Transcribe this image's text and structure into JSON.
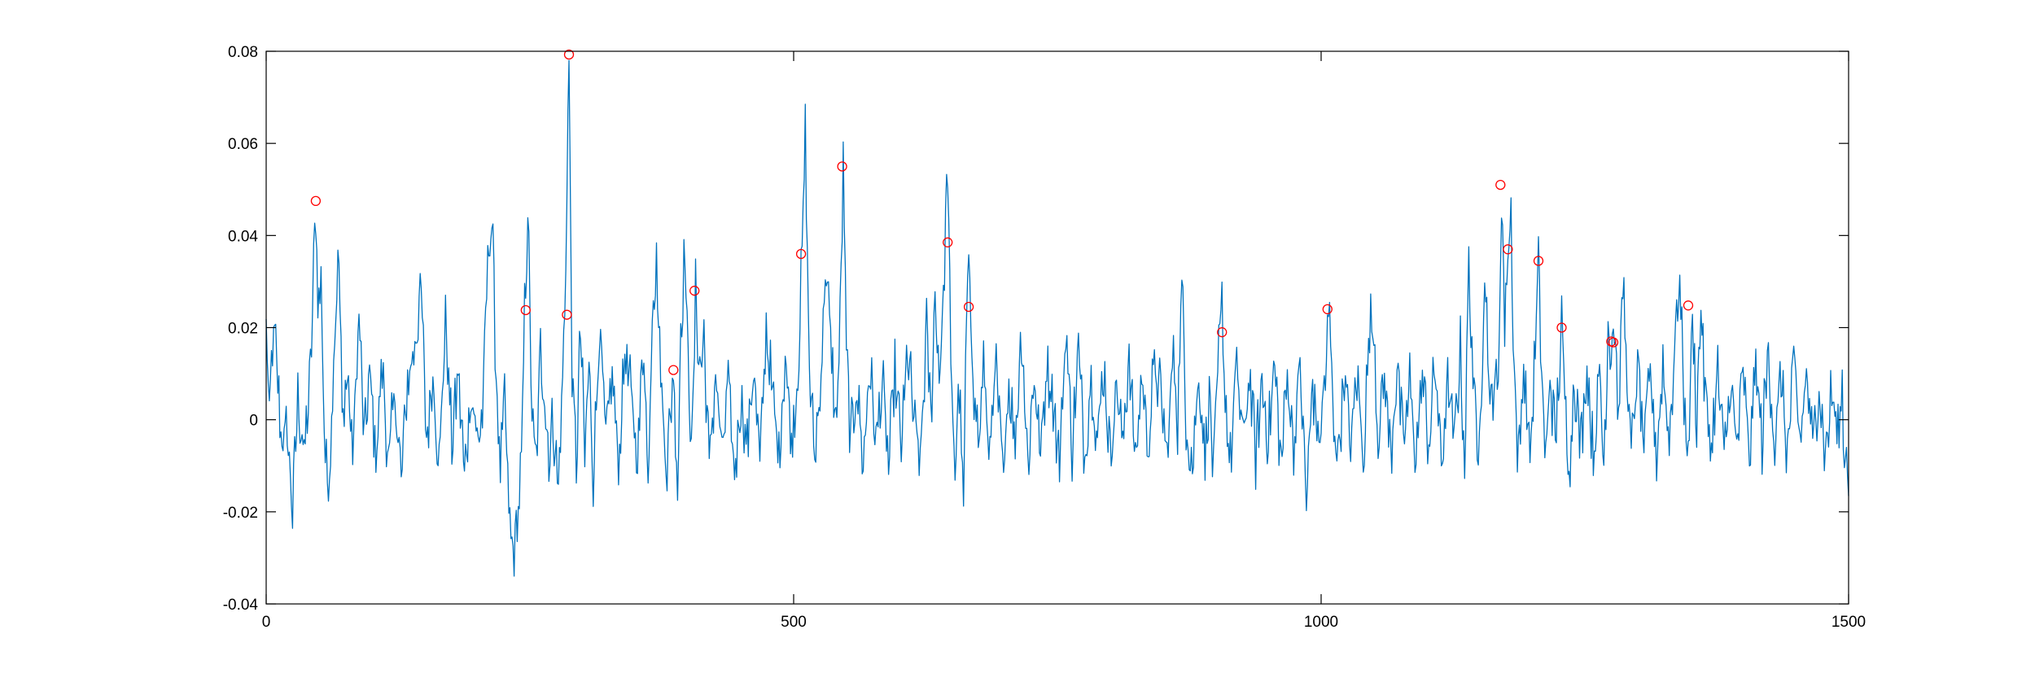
{
  "chart_data": {
    "type": "line",
    "title": "",
    "xlabel": "",
    "ylabel": "",
    "xlim": [
      0,
      1500
    ],
    "ylim": [
      -0.04,
      0.08
    ],
    "x_ticks": [
      0,
      500,
      1000,
      1500
    ],
    "x_tick_labels": [
      "0",
      "500",
      "1000",
      "1500"
    ],
    "y_ticks": [
      -0.04,
      -0.02,
      0,
      0.02,
      0.04,
      0.06,
      0.08
    ],
    "y_tick_labels": [
      "-0.04",
      "-0.02",
      "0",
      "0.02",
      "0.04",
      "0.06",
      "0.08"
    ],
    "grid": false,
    "box": true,
    "colors": {
      "line": "#0072BD",
      "markers": "#FF0000",
      "axes": "#000000"
    },
    "signal": {
      "x_start": 0,
      "x_end": 1500,
      "anchors": [
        [
          0,
          0.02
        ],
        [
          3,
          0.0
        ],
        [
          6,
          0.017
        ],
        [
          9,
          0.016
        ],
        [
          13,
          0.0
        ],
        [
          16,
          -0.005
        ],
        [
          20,
          -0.002
        ],
        [
          25,
          -0.02
        ],
        [
          30,
          0.005
        ],
        [
          36,
          -0.008
        ],
        [
          42,
          0.01
        ],
        [
          47,
          0.047
        ],
        [
          49,
          0.025
        ],
        [
          52,
          0.03
        ],
        [
          56,
          -0.01
        ],
        [
          60,
          -0.012
        ],
        [
          65,
          0.02
        ],
        [
          69,
          0.036
        ],
        [
          72,
          0.0
        ],
        [
          77,
          0.01
        ],
        [
          82,
          -0.008
        ],
        [
          88,
          0.023
        ],
        [
          93,
          -0.005
        ],
        [
          98,
          0.01
        ],
        [
          104,
          -0.008
        ],
        [
          110,
          0.012
        ],
        [
          116,
          -0.01
        ],
        [
          122,
          0.006
        ],
        [
          128,
          -0.013
        ],
        [
          134,
          0.008
        ],
        [
          140,
          0.015
        ],
        [
          147,
          0.028
        ],
        [
          152,
          -0.005
        ],
        [
          158,
          0.01
        ],
        [
          164,
          -0.01
        ],
        [
          170,
          0.022
        ],
        [
          176,
          -0.005
        ],
        [
          182,
          0.01
        ],
        [
          188,
          -0.012
        ],
        [
          194,
          0.006
        ],
        [
          200,
          -0.004
        ],
        [
          205,
          0.0
        ],
        [
          210,
          0.035
        ],
        [
          214,
          0.044
        ],
        [
          218,
          0.01
        ],
        [
          222,
          -0.012
        ],
        [
          226,
          0.005
        ],
        [
          230,
          -0.02
        ],
        [
          234,
          -0.03
        ],
        [
          238,
          -0.022
        ],
        [
          242,
          -0.01
        ],
        [
          245,
          0.023
        ],
        [
          248,
          0.046
        ],
        [
          252,
          0.0
        ],
        [
          256,
          -0.01
        ],
        [
          260,
          0.015
        ],
        [
          264,
          0.005
        ],
        [
          268,
          -0.008
        ],
        [
          272,
          0.0
        ],
        [
          277,
          -0.015
        ],
        [
          283,
          0.022
        ],
        [
          287,
          0.079
        ],
        [
          290,
          0.01
        ],
        [
          294,
          -0.01
        ],
        [
          298,
          0.02
        ],
        [
          302,
          -0.008
        ],
        [
          306,
          0.012
        ],
        [
          310,
          -0.012
        ],
        [
          316,
          0.02
        ],
        [
          322,
          -0.005
        ],
        [
          328,
          0.01
        ],
        [
          334,
          -0.01
        ],
        [
          340,
          0.015
        ],
        [
          346,
          0.005
        ],
        [
          352,
          -0.008
        ],
        [
          358,
          0.018
        ],
        [
          362,
          -0.015
        ],
        [
          366,
          0.026
        ],
        [
          370,
          0.033
        ],
        [
          375,
          0.005
        ],
        [
          380,
          -0.01
        ],
        [
          386,
          0.011
        ],
        [
          390,
          -0.015
        ],
        [
          393,
          0.02
        ],
        [
          397,
          0.037
        ],
        [
          400,
          0.01
        ],
        [
          404,
          -0.005
        ],
        [
          407,
          0.028
        ],
        [
          411,
          0.01
        ],
        [
          415,
          0.018
        ],
        [
          420,
          -0.01
        ],
        [
          426,
          0.01
        ],
        [
          432,
          -0.008
        ],
        [
          438,
          0.008
        ],
        [
          444,
          -0.012
        ],
        [
          450,
          0.005
        ],
        [
          456,
          -0.006
        ],
        [
          462,
          0.012
        ],
        [
          468,
          -0.01
        ],
        [
          474,
          0.02
        ],
        [
          480,
          0.005
        ],
        [
          486,
          -0.008
        ],
        [
          492,
          0.014
        ],
        [
          498,
          -0.005
        ],
        [
          504,
          0.01
        ],
        [
          508,
          0.036
        ],
        [
          511,
          0.062
        ],
        [
          515,
          0.01
        ],
        [
          520,
          -0.008
        ],
        [
          526,
          0.01
        ],
        [
          530,
          0.033
        ],
        [
          535,
          0.018
        ],
        [
          540,
          -0.002
        ],
        [
          544,
          0.02
        ],
        [
          547,
          0.056
        ],
        [
          550,
          0.015
        ],
        [
          554,
          -0.005
        ],
        [
          560,
          0.008
        ],
        [
          566,
          -0.01
        ],
        [
          572,
          0.012
        ],
        [
          578,
          -0.005
        ],
        [
          584,
          0.008
        ],
        [
          590,
          -0.01
        ],
        [
          596,
          0.01
        ],
        [
          602,
          -0.006
        ],
        [
          608,
          0.015
        ],
        [
          614,
          0.0
        ],
        [
          620,
          -0.01
        ],
        [
          626,
          0.02
        ],
        [
          630,
          0.0
        ],
        [
          634,
          0.027
        ],
        [
          638,
          0.01
        ],
        [
          642,
          0.026
        ],
        [
          646,
          0.057
        ],
        [
          649,
          0.01
        ],
        [
          653,
          -0.01
        ],
        [
          657,
          0.008
        ],
        [
          661,
          -0.02
        ],
        [
          664,
          0.024
        ],
        [
          667,
          0.032
        ],
        [
          671,
          0.005
        ],
        [
          676,
          -0.005
        ],
        [
          680,
          0.012
        ],
        [
          686,
          -0.008
        ],
        [
          692,
          0.01
        ],
        [
          698,
          -0.01
        ],
        [
          704,
          0.008
        ],
        [
          710,
          -0.005
        ],
        [
          716,
          0.02
        ],
        [
          722,
          -0.01
        ],
        [
          728,
          0.01
        ],
        [
          734,
          -0.008
        ],
        [
          740,
          0.012
        ],
        [
          746,
          0.005
        ],
        [
          752,
          -0.01
        ],
        [
          758,
          0.02
        ],
        [
          764,
          -0.006
        ],
        [
          770,
          0.015
        ],
        [
          776,
          -0.008
        ],
        [
          782,
          0.01
        ],
        [
          788,
          -0.005
        ],
        [
          794,
          0.012
        ],
        [
          800,
          -0.008
        ],
        [
          806,
          0.008
        ],
        [
          812,
          -0.006
        ],
        [
          818,
          0.015
        ],
        [
          824,
          -0.01
        ],
        [
          830,
          0.01
        ],
        [
          836,
          -0.006
        ],
        [
          842,
          0.012
        ],
        [
          848,
          0.005
        ],
        [
          854,
          -0.008
        ],
        [
          860,
          0.015
        ],
        [
          864,
          0.0
        ],
        [
          868,
          0.03
        ],
        [
          872,
          0.0
        ],
        [
          878,
          -0.01
        ],
        [
          884,
          0.01
        ],
        [
          890,
          -0.008
        ],
        [
          894,
          0.006
        ],
        [
          898,
          -0.012
        ],
        [
          904,
          0.019
        ],
        [
          906,
          0.025
        ],
        [
          909,
          0.005
        ],
        [
          914,
          -0.01
        ],
        [
          920,
          0.012
        ],
        [
          926,
          -0.005
        ],
        [
          932,
          0.01
        ],
        [
          938,
          -0.008
        ],
        [
          944,
          0.008
        ],
        [
          950,
          -0.004
        ],
        [
          956,
          0.012
        ],
        [
          962,
          -0.01
        ],
        [
          968,
          0.01
        ],
        [
          974,
          -0.006
        ],
        [
          980,
          0.012
        ],
        [
          986,
          -0.018
        ],
        [
          992,
          0.008
        ],
        [
          998,
          -0.006
        ],
        [
          1004,
          0.01
        ],
        [
          1008,
          0.024
        ],
        [
          1011,
          0.002
        ],
        [
          1016,
          -0.008
        ],
        [
          1022,
          0.01
        ],
        [
          1028,
          -0.006
        ],
        [
          1034,
          0.01
        ],
        [
          1040,
          -0.008
        ],
        [
          1046,
          0.02
        ],
        [
          1050,
          0.021
        ],
        [
          1054,
          -0.005
        ],
        [
          1060,
          0.01
        ],
        [
          1066,
          -0.008
        ],
        [
          1072,
          0.012
        ],
        [
          1078,
          -0.006
        ],
        [
          1084,
          0.008
        ],
        [
          1090,
          -0.008
        ],
        [
          1096,
          0.01
        ],
        [
          1102,
          -0.006
        ],
        [
          1108,
          0.012
        ],
        [
          1114,
          -0.01
        ],
        [
          1120,
          0.008
        ],
        [
          1126,
          -0.005
        ],
        [
          1132,
          0.015
        ],
        [
          1136,
          -0.01
        ],
        [
          1140,
          0.033
        ],
        [
          1144,
          0.01
        ],
        [
          1148,
          -0.008
        ],
        [
          1152,
          0.01
        ],
        [
          1156,
          0.032
        ],
        [
          1160,
          0.0
        ],
        [
          1164,
          0.01
        ],
        [
          1168,
          0.005
        ],
        [
          1171,
          0.051
        ],
        [
          1174,
          0.02
        ],
        [
          1177,
          0.037
        ],
        [
          1180,
          0.044
        ],
        [
          1183,
          0.01
        ],
        [
          1187,
          -0.01
        ],
        [
          1192,
          0.012
        ],
        [
          1198,
          -0.008
        ],
        [
          1202,
          0.01
        ],
        [
          1206,
          0.034
        ],
        [
          1209,
          0.01
        ],
        [
          1213,
          -0.01
        ],
        [
          1217,
          0.01
        ],
        [
          1222,
          -0.005
        ],
        [
          1228,
          0.02
        ],
        [
          1232,
          0.0
        ],
        [
          1236,
          -0.01
        ],
        [
          1240,
          0.01
        ],
        [
          1246,
          -0.006
        ],
        [
          1252,
          0.012
        ],
        [
          1258,
          -0.008
        ],
        [
          1264,
          0.01
        ],
        [
          1268,
          -0.01
        ],
        [
          1272,
          0.02
        ],
        [
          1275,
          0.016
        ],
        [
          1278,
          0.022
        ],
        [
          1282,
          0.0
        ],
        [
          1286,
          0.03
        ],
        [
          1290,
          0.01
        ],
        [
          1294,
          -0.008
        ],
        [
          1300,
          0.012
        ],
        [
          1306,
          -0.006
        ],
        [
          1312,
          0.01
        ],
        [
          1318,
          -0.008
        ],
        [
          1324,
          0.012
        ],
        [
          1330,
          -0.005
        ],
        [
          1336,
          0.02
        ],
        [
          1340,
          0.03
        ],
        [
          1344,
          0.005
        ],
        [
          1348,
          -0.008
        ],
        [
          1352,
          0.022
        ],
        [
          1356,
          0.0
        ],
        [
          1360,
          0.025
        ],
        [
          1364,
          0.005
        ],
        [
          1370,
          -0.006
        ],
        [
          1376,
          0.01
        ],
        [
          1382,
          -0.008
        ],
        [
          1388,
          0.008
        ],
        [
          1394,
          -0.006
        ],
        [
          1400,
          0.01
        ],
        [
          1406,
          -0.008
        ],
        [
          1412,
          0.012
        ],
        [
          1418,
          -0.005
        ],
        [
          1424,
          0.015
        ],
        [
          1430,
          -0.006
        ],
        [
          1436,
          0.01
        ],
        [
          1442,
          -0.008
        ],
        [
          1448,
          0.012
        ],
        [
          1454,
          -0.005
        ],
        [
          1460,
          0.01
        ],
        [
          1466,
          -0.006
        ],
        [
          1472,
          0.008
        ],
        [
          1478,
          -0.008
        ],
        [
          1484,
          0.006
        ],
        [
          1490,
          -0.004
        ],
        [
          1494,
          0.007
        ],
        [
          1496,
          -0.01
        ],
        [
          1498,
          -0.005
        ],
        [
          1500,
          -0.011
        ]
      ]
    },
    "peaks": {
      "x": [
        47,
        246,
        285,
        287,
        386,
        406,
        507,
        546,
        646,
        666,
        906,
        1006,
        1170,
        1177,
        1206,
        1228,
        1275,
        1277,
        1348
      ],
      "y": [
        0.0475,
        0.0238,
        0.0228,
        0.0793,
        0.0108,
        0.028,
        0.036,
        0.055,
        0.0385,
        0.0245,
        0.019,
        0.024,
        0.051,
        0.037,
        0.0345,
        0.02,
        0.017,
        0.0168,
        0.0248
      ]
    }
  }
}
